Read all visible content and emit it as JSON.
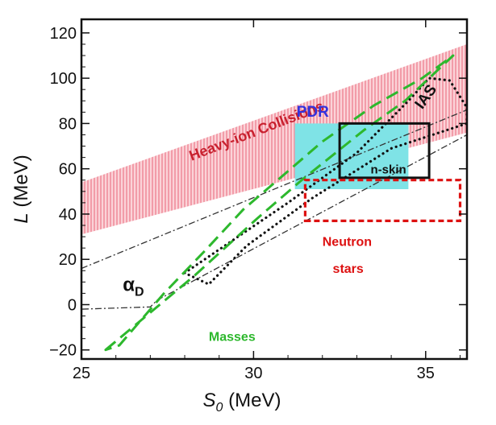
{
  "chart_data": {
    "type": "constraint-plot",
    "xlabel": {
      "symbol": "S",
      "sub": "0",
      "unit": " (MeV)"
    },
    "ylabel": {
      "symbol": "L",
      "unit": " (MeV)"
    },
    "xlim": [
      25,
      36.2
    ],
    "ylim": [
      -24,
      126
    ],
    "xticks": [
      25,
      30,
      35
    ],
    "xtick_labels": [
      "25",
      "30",
      "35"
    ],
    "yticks": [
      -20,
      0,
      20,
      40,
      60,
      80,
      100,
      120
    ],
    "ytick_labels": [
      "−20",
      "0",
      "20",
      "40",
      "60",
      "80",
      "100",
      "120"
    ],
    "colors": {
      "hic_band": "#f08f9d",
      "hic_text": "#c8202e",
      "pdr_fill": "#7fe3e6",
      "pdr_text": "#3333dd",
      "masses": "#2db82d",
      "neutron_stars": "#dd1111",
      "black": "#111111"
    },
    "regions": [
      {
        "name": "Heavy-ion Collisions",
        "kind": "hatched-band",
        "points": [
          [
            25,
            54
          ],
          [
            36.2,
            115
          ],
          [
            36.2,
            76
          ],
          [
            25,
            31
          ]
        ]
      },
      {
        "name": "PDR",
        "kind": "filled-rect",
        "points": [
          [
            31.2,
            51
          ],
          [
            34.5,
            51
          ],
          [
            34.5,
            80
          ],
          [
            31.2,
            80
          ]
        ]
      },
      {
        "name": "n-skin",
        "kind": "solid-rect",
        "points": [
          [
            32.5,
            56
          ],
          [
            35.1,
            56
          ],
          [
            35.1,
            80
          ],
          [
            32.5,
            80
          ]
        ]
      },
      {
        "name": "Neutron stars",
        "kind": "dashed-rect",
        "points": [
          [
            31.5,
            37
          ],
          [
            36.0,
            37
          ],
          [
            36.0,
            55
          ],
          [
            31.5,
            55
          ]
        ]
      },
      {
        "name": "Masses",
        "kind": "long-dash-contour",
        "points": [
          [
            25.7,
            -20
          ],
          [
            28.3,
            13
          ],
          [
            30.1,
            38
          ],
          [
            31.4,
            55
          ],
          [
            33.2,
            77
          ],
          [
            34.4,
            90
          ],
          [
            35.1,
            100
          ],
          [
            35.8,
            110
          ],
          [
            34.9,
            100
          ],
          [
            33.5,
            88
          ],
          [
            32.0,
            72
          ],
          [
            30.7,
            55
          ],
          [
            29.7,
            42
          ],
          [
            28.6,
            24
          ],
          [
            27.4,
            5
          ],
          [
            26.1,
            -18
          ],
          [
            25.7,
            -20
          ]
        ]
      },
      {
        "name": "IAS",
        "kind": "dotted-contour",
        "points": [
          [
            28.0,
            14
          ],
          [
            31.0,
            45
          ],
          [
            33.0,
            67
          ],
          [
            34.5,
            90
          ],
          [
            35.1,
            100
          ],
          [
            35.7,
            99
          ],
          [
            36.2,
            87
          ],
          [
            36.2,
            80
          ],
          [
            34.0,
            69
          ],
          [
            31.7,
            47
          ],
          [
            29.8,
            26
          ],
          [
            28.7,
            9
          ],
          [
            28.0,
            14
          ]
        ]
      },
      {
        "name": "αD",
        "kind": "dash-dot-band",
        "points": [
          [
            25,
            16
          ],
          [
            36.2,
            86
          ],
          [
            36.2,
            75
          ],
          [
            27.2,
            2
          ],
          [
            27.0,
            -1
          ],
          [
            25,
            -2
          ]
        ]
      }
    ],
    "annotations": [
      {
        "text": "Heavy-ion Collisions",
        "x": 28.2,
        "y": 63.5,
        "rotation": -21,
        "color": "hic_text"
      },
      {
        "text": "PDR",
        "x": 31.25,
        "y": 83,
        "rotation": 0,
        "color": "pdr_text"
      },
      {
        "text": "IAS",
        "x": 34.9,
        "y": 86,
        "rotation": -54,
        "color": "black"
      },
      {
        "text": "n-skin",
        "x": 33.4,
        "y": 58,
        "rotation": 0,
        "color": "black"
      },
      {
        "text": "Neutron",
        "x": 32.0,
        "y": 26,
        "rotation": 0,
        "color": "neutron_stars"
      },
      {
        "text": "stars",
        "x": 32.3,
        "y": 14,
        "rotation": 0,
        "color": "neutron_stars"
      },
      {
        "text": "α",
        "sub": "D",
        "x": 26.2,
        "y": 6,
        "rotation": 0,
        "color": "black"
      },
      {
        "text": "Masses",
        "x": 28.7,
        "y": -16,
        "rotation": 0,
        "color": "masses"
      }
    ]
  }
}
